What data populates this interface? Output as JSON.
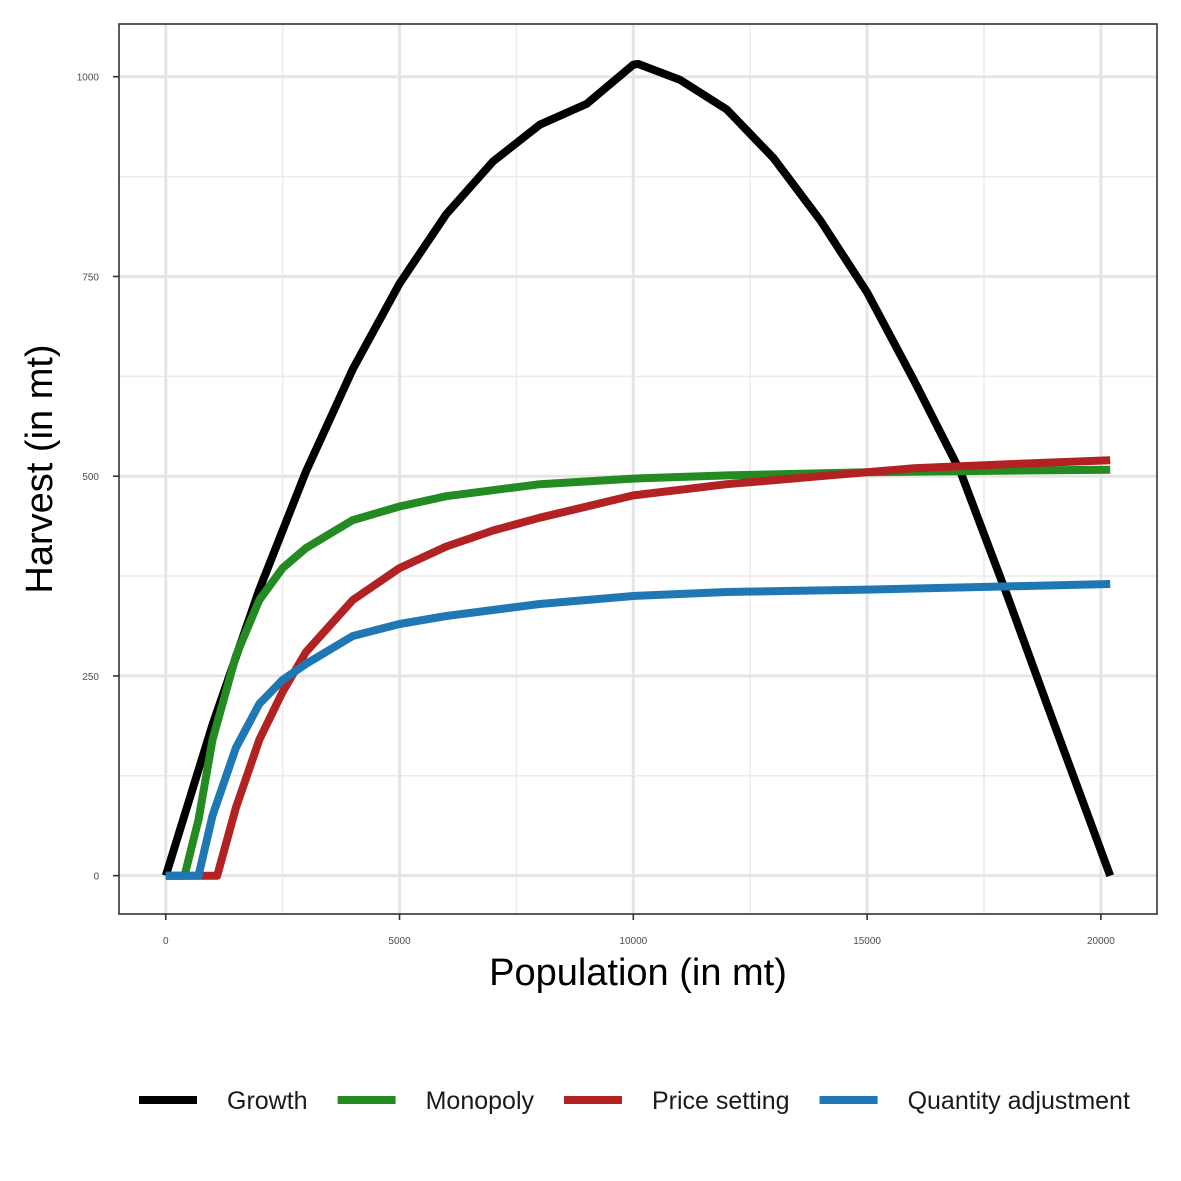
{
  "chart_data": {
    "type": "line",
    "title": "",
    "xlabel": "Population (in mt)",
    "ylabel": "Harvest (in mt)",
    "xlim": [
      -1000,
      21200
    ],
    "ylim": [
      -48,
      1066
    ],
    "x_ticks": [
      0,
      5000,
      10000,
      15000,
      20000
    ],
    "x_tick_labels": [
      "0",
      "5000",
      "10000",
      "15000",
      "20000"
    ],
    "y_ticks": [
      0,
      250,
      500,
      750,
      1000
    ],
    "y_tick_labels": [
      "0",
      "250",
      "500",
      "750",
      "1000"
    ],
    "grid": true,
    "legend_position": "bottom",
    "series": [
      {
        "name": "Growth",
        "color": "#000000",
        "x": [
          0,
          1000,
          2000,
          3000,
          4000,
          5000,
          6000,
          7000,
          8000,
          9000,
          10000,
          10100,
          11000,
          12000,
          13000,
          14000,
          15000,
          16000,
          17000,
          18000,
          19000,
          20200
        ],
        "y": [
          0,
          189,
          358,
          506,
          634,
          741,
          828,
          894,
          940,
          966,
          1015,
          1016,
          996,
          959,
          898,
          820,
          730,
          620,
          505,
          350,
          190,
          0
        ]
      },
      {
        "name": "Monopoly",
        "color": "#238b22",
        "x": [
          0,
          400,
          700,
          1000,
          1500,
          2000,
          2500,
          3000,
          4000,
          5000,
          6000,
          8000,
          10000,
          12000,
          15000,
          18000,
          20200
        ],
        "y": [
          0,
          0,
          70,
          170,
          275,
          345,
          385,
          410,
          445,
          462,
          475,
          490,
          497,
          501,
          505,
          507,
          508
        ]
      },
      {
        "name": "Price setting",
        "color": "#b22222",
        "x": [
          0,
          1100,
          1500,
          2000,
          2500,
          3000,
          4000,
          5000,
          6000,
          7000,
          8000,
          10000,
          12000,
          14000,
          16000,
          18000,
          20200
        ],
        "y": [
          0,
          0,
          85,
          170,
          230,
          280,
          345,
          385,
          412,
          432,
          448,
          476,
          490,
          500,
          510,
          515,
          520
        ]
      },
      {
        "name": "Quantity adjustment",
        "color": "#1f78b4",
        "x": [
          0,
          700,
          1000,
          1500,
          2000,
          2500,
          3000,
          4000,
          5000,
          6000,
          8000,
          10000,
          12000,
          15000,
          18000,
          20200
        ],
        "y": [
          0,
          0,
          75,
          160,
          215,
          245,
          265,
          300,
          315,
          325,
          340,
          350,
          355,
          358,
          362,
          365
        ]
      }
    ]
  }
}
